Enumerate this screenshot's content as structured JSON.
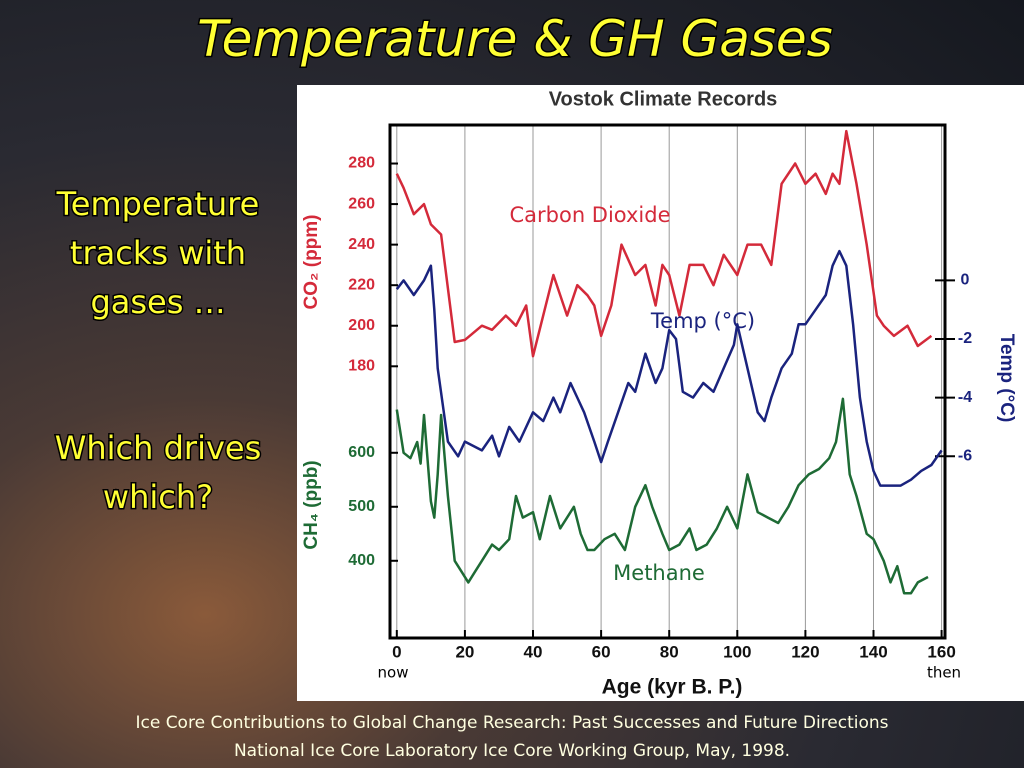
{
  "slide": {
    "title": "Temperature & GH Gases",
    "bullets": [
      [
        "Temperature",
        "tracks with",
        "gases …"
      ],
      [
        "Which drives",
        "which?"
      ]
    ],
    "citation": [
      "Ice Core Contributions to Global Change Research:  Past Successes and Future Directions",
      "National Ice Core Laboratory Ice Core Working Group, May, 1998."
    ]
  },
  "chart_data": {
    "type": "line",
    "title": "Vostok Climate Records",
    "x_label": "Age (kyr B. P.)",
    "y_label": "CO₂ (ppm)",
    "y2_label": "Temp (°C)",
    "y3_label": "CH₄ (ppb)",
    "annotations": [
      "now",
      "then"
    ],
    "xlim": [
      -2,
      161
    ],
    "xticks": [
      0,
      20,
      40,
      60,
      80,
      100,
      120,
      140,
      160
    ],
    "grid": true,
    "ylim": [
      46,
      299
    ],
    "yticks": [
      180,
      200,
      220,
      240,
      260,
      280
    ],
    "y2lim": [
      -12.2,
      5.3
    ],
    "y2ticks": [
      -6,
      -4,
      -2,
      0
    ],
    "y3lim": [
      257,
      1207
    ],
    "y3ticks": [
      400,
      500,
      600
    ],
    "series": [
      {
        "name": "Carbon Dioxide",
        "color": "#d42a3a",
        "axis": "y",
        "x": [
          0,
          2,
          5,
          8,
          10,
          13,
          17,
          20,
          25,
          28,
          32,
          35,
          38,
          40,
          43,
          46,
          50,
          53,
          56,
          58,
          60,
          63,
          66,
          70,
          73,
          76,
          78,
          80,
          83,
          86,
          90,
          93,
          96,
          100,
          103,
          107,
          110,
          113,
          117,
          120,
          123,
          126,
          128,
          130,
          132,
          135,
          138,
          141,
          143,
          146,
          150,
          153,
          157
        ],
        "values": [
          275,
          268,
          255,
          260,
          250,
          245,
          192,
          193,
          200,
          198,
          205,
          200,
          210,
          185,
          205,
          225,
          205,
          220,
          215,
          210,
          195,
          210,
          240,
          225,
          230,
          210,
          230,
          225,
          205,
          230,
          230,
          220,
          235,
          225,
          240,
          240,
          230,
          270,
          280,
          270,
          275,
          265,
          275,
          270,
          296,
          270,
          240,
          205,
          200,
          195,
          200,
          190,
          195
        ]
      },
      {
        "name": "Temp (°C)",
        "color": "#1a237e",
        "axis": "y2",
        "x": [
          0,
          2,
          5,
          8,
          10,
          11,
          12,
          15,
          18,
          20,
          25,
          28,
          30,
          33,
          36,
          40,
          43,
          46,
          48,
          51,
          53,
          55,
          58,
          60,
          62,
          65,
          68,
          70,
          73,
          76,
          78,
          80,
          82,
          84,
          87,
          90,
          93,
          96,
          99,
          100,
          102,
          104,
          106,
          108,
          110,
          113,
          116,
          118,
          120,
          123,
          126,
          128,
          130,
          132,
          134,
          136,
          138,
          140,
          142,
          145,
          148,
          151,
          154,
          157,
          160
        ],
        "values": [
          -0.3,
          0,
          -0.5,
          0,
          0.5,
          -1,
          -3,
          -5.5,
          -6,
          -5.5,
          -5.8,
          -5.3,
          -6,
          -5,
          -5.5,
          -4.5,
          -4.8,
          -4,
          -4.5,
          -3.5,
          -4,
          -4.5,
          -5.5,
          -6.2,
          -5.5,
          -4.5,
          -3.5,
          -3.8,
          -2.5,
          -3.5,
          -3,
          -1.7,
          -2,
          -3.8,
          -4,
          -3.5,
          -3.8,
          -3,
          -2.2,
          -1.5,
          -2.5,
          -3.5,
          -4.5,
          -4.8,
          -4,
          -3,
          -2.5,
          -1.5,
          -1.5,
          -1,
          -0.5,
          0.5,
          1,
          0.5,
          -1.5,
          -4,
          -5.5,
          -6.5,
          -7,
          -7,
          -7,
          -6.8,
          -6.5,
          -6.3,
          -5.8
        ]
      },
      {
        "name": "Methane",
        "color": "#1e6b35",
        "axis": "y3",
        "x": [
          0,
          2,
          4,
          6,
          7,
          8,
          10,
          11,
          12,
          13,
          15,
          17,
          19,
          21,
          23,
          25,
          28,
          30,
          33,
          35,
          37,
          40,
          42,
          45,
          48,
          52,
          54,
          56,
          58,
          61,
          64,
          67,
          70,
          73,
          75,
          78,
          80,
          83,
          86,
          88,
          91,
          94,
          97,
          100,
          103,
          106,
          109,
          112,
          115,
          118,
          121,
          124,
          127,
          129,
          131,
          133,
          135,
          138,
          140,
          143,
          145,
          147,
          149,
          151,
          153,
          156
        ],
        "values": [
          680,
          600,
          590,
          620,
          580,
          670,
          510,
          480,
          560,
          670,
          520,
          400,
          380,
          360,
          380,
          400,
          430,
          420,
          440,
          520,
          480,
          490,
          440,
          520,
          460,
          500,
          450,
          420,
          420,
          440,
          450,
          420,
          500,
          540,
          500,
          450,
          420,
          430,
          460,
          420,
          430,
          460,
          500,
          460,
          560,
          490,
          480,
          470,
          500,
          540,
          560,
          570,
          590,
          620,
          700,
          560,
          520,
          450,
          440,
          400,
          360,
          390,
          340,
          340,
          360,
          370
        ]
      }
    ]
  }
}
